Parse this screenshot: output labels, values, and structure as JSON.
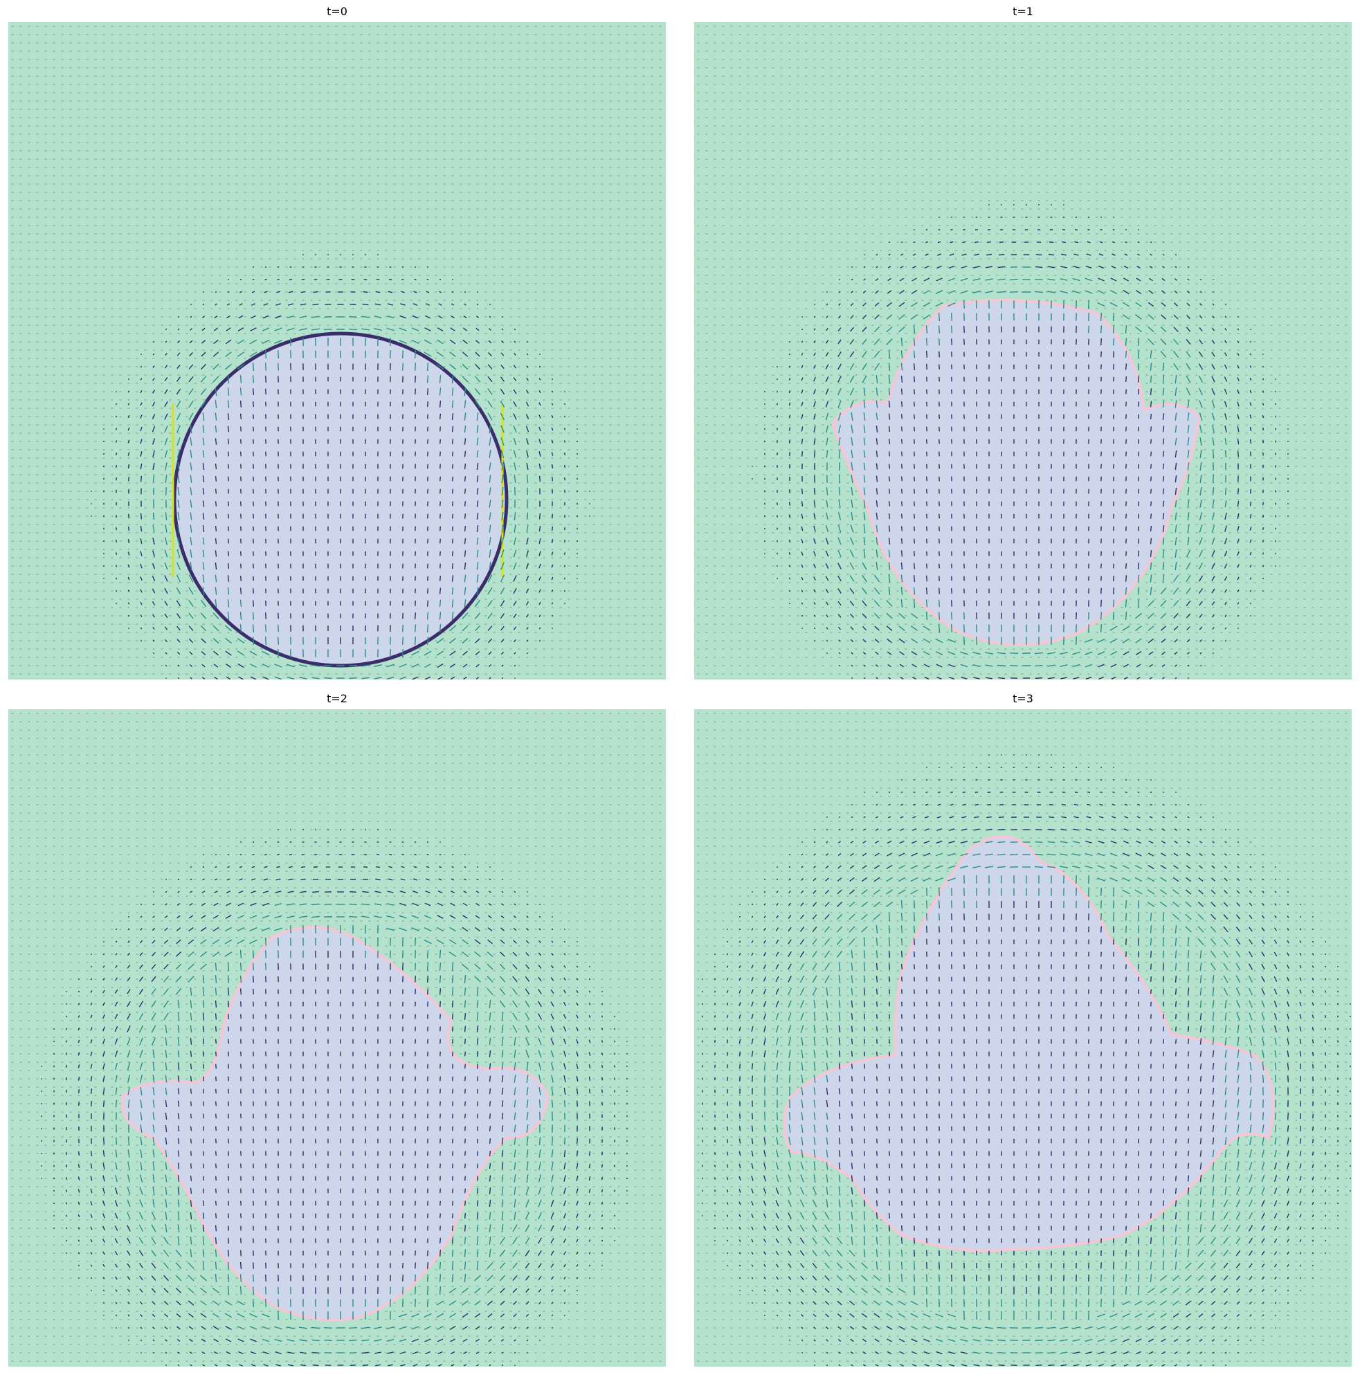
{
  "chart_data": [
    {
      "type": "heatmap",
      "title": "t=0",
      "overlay": "quiver",
      "grid": false,
      "colors": {
        "background": "#b4e2cc",
        "blob": "#cdd6ea",
        "interface": "#f5c6d6",
        "arrow": "#2b2f6b",
        "strong": "#d8e219"
      },
      "blob_shape": "circle"
    },
    {
      "type": "heatmap",
      "title": "t=1",
      "overlay": "quiver",
      "grid": false,
      "colors": {
        "background": "#b4e2cc",
        "blob": "#cdd6ea",
        "interface": "#f5c6d6",
        "arrow": "#2b2f6b",
        "strong": "#d8e219"
      },
      "blob_shape": "rounded blob with side lobes"
    },
    {
      "type": "heatmap",
      "title": "t=2",
      "overlay": "quiver",
      "grid": false,
      "colors": {
        "background": "#b4e2cc",
        "blob": "#cdd6ea",
        "interface": "#f5c6d6",
        "arrow": "#2b2f6b",
        "strong": "#d8e219"
      },
      "blob_shape": "mushroom with wings"
    },
    {
      "type": "heatmap",
      "title": "t=3",
      "overlay": "quiver",
      "grid": false,
      "colors": {
        "background": "#b4e2cc",
        "blob": "#cdd6ea",
        "interface": "#f5c6d6",
        "arrow": "#2b2f6b",
        "strong": "#d8e219"
      },
      "blob_shape": "wide spread with fingers"
    }
  ]
}
